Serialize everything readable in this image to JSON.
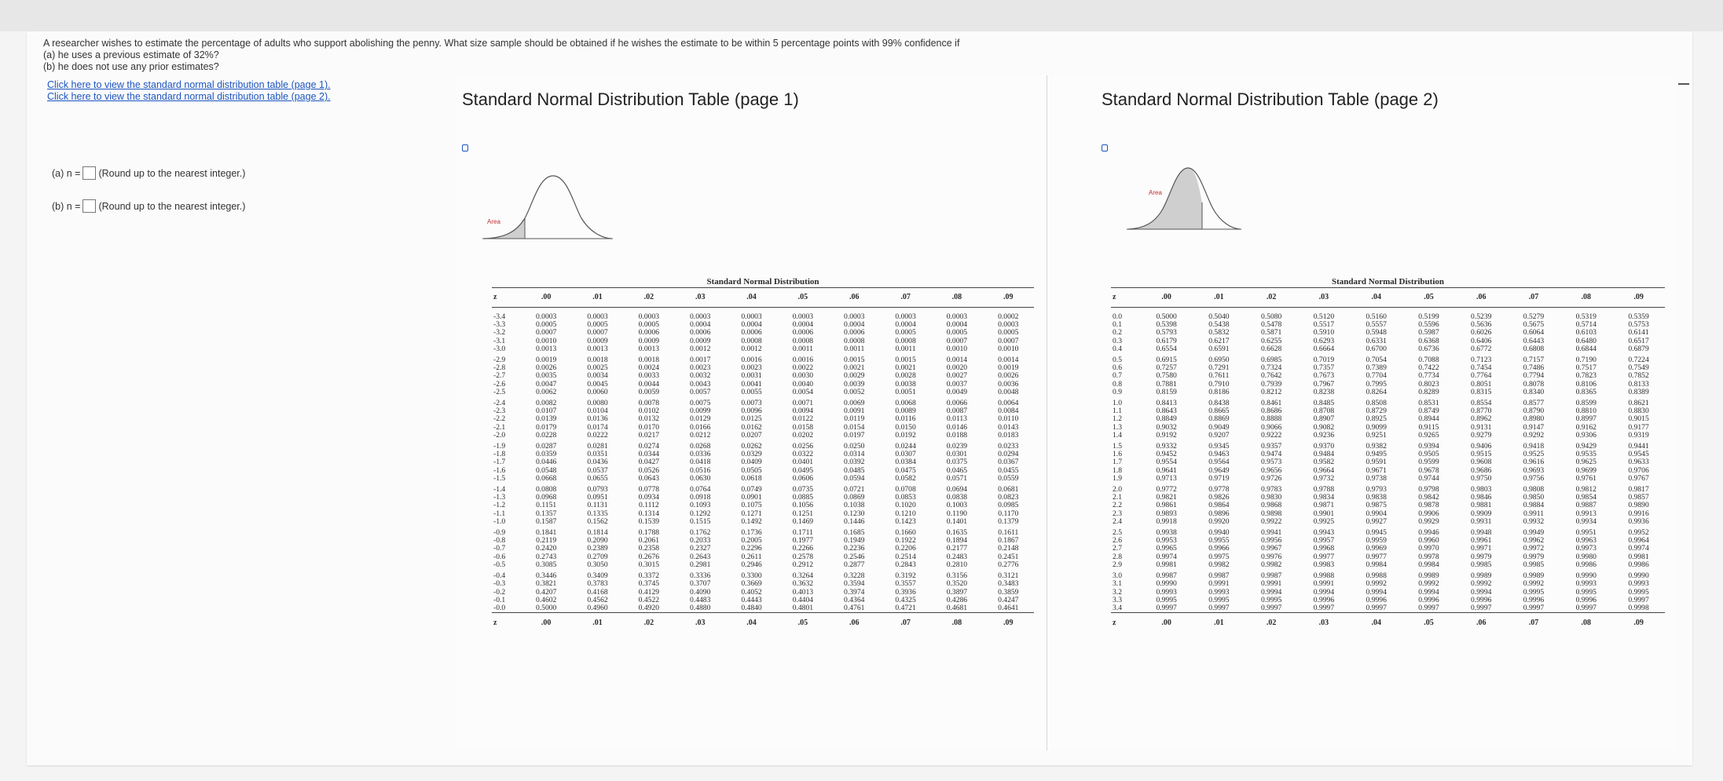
{
  "question": {
    "text": "A researcher wishes to estimate the percentage of adults who support abolishing the penny. What size sample should be obtained if he wishes the estimate to be within 5 percentage points with 99% confidence if",
    "part_a": "(a) he uses a previous estimate of 32%?",
    "part_b": "(b) he does not use any prior estimates?",
    "link_page1": "Click here to view the standard normal distribution table (page 1).",
    "link_page2": "Click here to view the standard normal distribution table (page 2)."
  },
  "answers": {
    "a_label": "(a) n =",
    "a_hint": "(Round up to the nearest integer.)",
    "b_label": "(b) n =",
    "b_hint": "(Round up to the nearest integer.)"
  },
  "table1": {
    "window_title": "Standard Normal Distribution Table (page 1)",
    "area_label": "Area",
    "title": "Standard Normal Distribution",
    "header": [
      "z",
      ".00",
      ".01",
      ".02",
      ".03",
      ".04",
      ".05",
      ".06",
      ".07",
      ".08",
      ".09"
    ],
    "rows": [
      [
        "-3.4",
        "0.0003",
        "0.0003",
        "0.0003",
        "0.0003",
        "0.0003",
        "0.0003",
        "0.0003",
        "0.0003",
        "0.0003",
        "0.0002"
      ],
      [
        "-3.3",
        "0.0005",
        "0.0005",
        "0.0005",
        "0.0004",
        "0.0004",
        "0.0004",
        "0.0004",
        "0.0004",
        "0.0004",
        "0.0003"
      ],
      [
        "-3.2",
        "0.0007",
        "0.0007",
        "0.0006",
        "0.0006",
        "0.0006",
        "0.0006",
        "0.0006",
        "0.0005",
        "0.0005",
        "0.0005"
      ],
      [
        "-3.1",
        "0.0010",
        "0.0009",
        "0.0009",
        "0.0009",
        "0.0008",
        "0.0008",
        "0.0008",
        "0.0008",
        "0.0007",
        "0.0007"
      ],
      [
        "-3.0",
        "0.0013",
        "0.0013",
        "0.0013",
        "0.0012",
        "0.0012",
        "0.0011",
        "0.0011",
        "0.0011",
        "0.0010",
        "0.0010"
      ],
      [
        "-2.9",
        "0.0019",
        "0.0018",
        "0.0018",
        "0.0017",
        "0.0016",
        "0.0016",
        "0.0015",
        "0.0015",
        "0.0014",
        "0.0014"
      ],
      [
        "-2.8",
        "0.0026",
        "0.0025",
        "0.0024",
        "0.0023",
        "0.0023",
        "0.0022",
        "0.0021",
        "0.0021",
        "0.0020",
        "0.0019"
      ],
      [
        "-2.7",
        "0.0035",
        "0.0034",
        "0.0033",
        "0.0032",
        "0.0031",
        "0.0030",
        "0.0029",
        "0.0028",
        "0.0027",
        "0.0026"
      ],
      [
        "-2.6",
        "0.0047",
        "0.0045",
        "0.0044",
        "0.0043",
        "0.0041",
        "0.0040",
        "0.0039",
        "0.0038",
        "0.0037",
        "0.0036"
      ],
      [
        "-2.5",
        "0.0062",
        "0.0060",
        "0.0059",
        "0.0057",
        "0.0055",
        "0.0054",
        "0.0052",
        "0.0051",
        "0.0049",
        "0.0048"
      ],
      [
        "-2.4",
        "0.0082",
        "0.0080",
        "0.0078",
        "0.0075",
        "0.0073",
        "0.0071",
        "0.0069",
        "0.0068",
        "0.0066",
        "0.0064"
      ],
      [
        "-2.3",
        "0.0107",
        "0.0104",
        "0.0102",
        "0.0099",
        "0.0096",
        "0.0094",
        "0.0091",
        "0.0089",
        "0.0087",
        "0.0084"
      ],
      [
        "-2.2",
        "0.0139",
        "0.0136",
        "0.0132",
        "0.0129",
        "0.0125",
        "0.0122",
        "0.0119",
        "0.0116",
        "0.0113",
        "0.0110"
      ],
      [
        "-2.1",
        "0.0179",
        "0.0174",
        "0.0170",
        "0.0166",
        "0.0162",
        "0.0158",
        "0.0154",
        "0.0150",
        "0.0146",
        "0.0143"
      ],
      [
        "-2.0",
        "0.0228",
        "0.0222",
        "0.0217",
        "0.0212",
        "0.0207",
        "0.0202",
        "0.0197",
        "0.0192",
        "0.0188",
        "0.0183"
      ],
      [
        "-1.9",
        "0.0287",
        "0.0281",
        "0.0274",
        "0.0268",
        "0.0262",
        "0.0256",
        "0.0250",
        "0.0244",
        "0.0239",
        "0.0233"
      ],
      [
        "-1.8",
        "0.0359",
        "0.0351",
        "0.0344",
        "0.0336",
        "0.0329",
        "0.0322",
        "0.0314",
        "0.0307",
        "0.0301",
        "0.0294"
      ],
      [
        "-1.7",
        "0.0446",
        "0.0436",
        "0.0427",
        "0.0418",
        "0.0409",
        "0.0401",
        "0.0392",
        "0.0384",
        "0.0375",
        "0.0367"
      ],
      [
        "-1.6",
        "0.0548",
        "0.0537",
        "0.0526",
        "0.0516",
        "0.0505",
        "0.0495",
        "0.0485",
        "0.0475",
        "0.0465",
        "0.0455"
      ],
      [
        "-1.5",
        "0.0668",
        "0.0655",
        "0.0643",
        "0.0630",
        "0.0618",
        "0.0606",
        "0.0594",
        "0.0582",
        "0.0571",
        "0.0559"
      ],
      [
        "-1.4",
        "0.0808",
        "0.0793",
        "0.0778",
        "0.0764",
        "0.0749",
        "0.0735",
        "0.0721",
        "0.0708",
        "0.0694",
        "0.0681"
      ],
      [
        "-1.3",
        "0.0968",
        "0.0951",
        "0.0934",
        "0.0918",
        "0.0901",
        "0.0885",
        "0.0869",
        "0.0853",
        "0.0838",
        "0.0823"
      ],
      [
        "-1.2",
        "0.1151",
        "0.1131",
        "0.1112",
        "0.1093",
        "0.1075",
        "0.1056",
        "0.1038",
        "0.1020",
        "0.1003",
        "0.0985"
      ],
      [
        "-1.1",
        "0.1357",
        "0.1335",
        "0.1314",
        "0.1292",
        "0.1271",
        "0.1251",
        "0.1230",
        "0.1210",
        "0.1190",
        "0.1170"
      ],
      [
        "-1.0",
        "0.1587",
        "0.1562",
        "0.1539",
        "0.1515",
        "0.1492",
        "0.1469",
        "0.1446",
        "0.1423",
        "0.1401",
        "0.1379"
      ],
      [
        "-0.9",
        "0.1841",
        "0.1814",
        "0.1788",
        "0.1762",
        "0.1736",
        "0.1711",
        "0.1685",
        "0.1660",
        "0.1635",
        "0.1611"
      ],
      [
        "-0.8",
        "0.2119",
        "0.2090",
        "0.2061",
        "0.2033",
        "0.2005",
        "0.1977",
        "0.1949",
        "0.1922",
        "0.1894",
        "0.1867"
      ],
      [
        "-0.7",
        "0.2420",
        "0.2389",
        "0.2358",
        "0.2327",
        "0.2296",
        "0.2266",
        "0.2236",
        "0.2206",
        "0.2177",
        "0.2148"
      ],
      [
        "-0.6",
        "0.2743",
        "0.2709",
        "0.2676",
        "0.2643",
        "0.2611",
        "0.2578",
        "0.2546",
        "0.2514",
        "0.2483",
        "0.2451"
      ],
      [
        "-0.5",
        "0.3085",
        "0.3050",
        "0.3015",
        "0.2981",
        "0.2946",
        "0.2912",
        "0.2877",
        "0.2843",
        "0.2810",
        "0.2776"
      ],
      [
        "-0.4",
        "0.3446",
        "0.3409",
        "0.3372",
        "0.3336",
        "0.3300",
        "0.3264",
        "0.3228",
        "0.3192",
        "0.3156",
        "0.3121"
      ],
      [
        "-0.3",
        "0.3821",
        "0.3783",
        "0.3745",
        "0.3707",
        "0.3669",
        "0.3632",
        "0.3594",
        "0.3557",
        "0.3520",
        "0.3483"
      ],
      [
        "-0.2",
        "0.4207",
        "0.4168",
        "0.4129",
        "0.4090",
        "0.4052",
        "0.4013",
        "0.3974",
        "0.3936",
        "0.3897",
        "0.3859"
      ],
      [
        "-0.1",
        "0.4602",
        "0.4562",
        "0.4522",
        "0.4483",
        "0.4443",
        "0.4404",
        "0.4364",
        "0.4325",
        "0.4286",
        "0.4247"
      ],
      [
        "-0.0",
        "0.5000",
        "0.4960",
        "0.4920",
        "0.4880",
        "0.4840",
        "0.4801",
        "0.4761",
        "0.4721",
        "0.4681",
        "0.4641"
      ]
    ]
  },
  "table2": {
    "window_title": "Standard Normal Distribution Table (page 2)",
    "area_label": "Area",
    "title": "Standard Normal Distribution",
    "header": [
      "z",
      ".00",
      ".01",
      ".02",
      ".03",
      ".04",
      ".05",
      ".06",
      ".07",
      ".08",
      ".09"
    ],
    "rows": [
      [
        "0.0",
        "0.5000",
        "0.5040",
        "0.5080",
        "0.5120",
        "0.5160",
        "0.5199",
        "0.5239",
        "0.5279",
        "0.5319",
        "0.5359"
      ],
      [
        "0.1",
        "0.5398",
        "0.5438",
        "0.5478",
        "0.5517",
        "0.5557",
        "0.5596",
        "0.5636",
        "0.5675",
        "0.5714",
        "0.5753"
      ],
      [
        "0.2",
        "0.5793",
        "0.5832",
        "0.5871",
        "0.5910",
        "0.5948",
        "0.5987",
        "0.6026",
        "0.6064",
        "0.6103",
        "0.6141"
      ],
      [
        "0.3",
        "0.6179",
        "0.6217",
        "0.6255",
        "0.6293",
        "0.6331",
        "0.6368",
        "0.6406",
        "0.6443",
        "0.6480",
        "0.6517"
      ],
      [
        "0.4",
        "0.6554",
        "0.6591",
        "0.6628",
        "0.6664",
        "0.6700",
        "0.6736",
        "0.6772",
        "0.6808",
        "0.6844",
        "0.6879"
      ],
      [
        "0.5",
        "0.6915",
        "0.6950",
        "0.6985",
        "0.7019",
        "0.7054",
        "0.7088",
        "0.7123",
        "0.7157",
        "0.7190",
        "0.7224"
      ],
      [
        "0.6",
        "0.7257",
        "0.7291",
        "0.7324",
        "0.7357",
        "0.7389",
        "0.7422",
        "0.7454",
        "0.7486",
        "0.7517",
        "0.7549"
      ],
      [
        "0.7",
        "0.7580",
        "0.7611",
        "0.7642",
        "0.7673",
        "0.7704",
        "0.7734",
        "0.7764",
        "0.7794",
        "0.7823",
        "0.7852"
      ],
      [
        "0.8",
        "0.7881",
        "0.7910",
        "0.7939",
        "0.7967",
        "0.7995",
        "0.8023",
        "0.8051",
        "0.8078",
        "0.8106",
        "0.8133"
      ],
      [
        "0.9",
        "0.8159",
        "0.8186",
        "0.8212",
        "0.8238",
        "0.8264",
        "0.8289",
        "0.8315",
        "0.8340",
        "0.8365",
        "0.8389"
      ],
      [
        "1.0",
        "0.8413",
        "0.8438",
        "0.8461",
        "0.8485",
        "0.8508",
        "0.8531",
        "0.8554",
        "0.8577",
        "0.8599",
        "0.8621"
      ],
      [
        "1.1",
        "0.8643",
        "0.8665",
        "0.8686",
        "0.8708",
        "0.8729",
        "0.8749",
        "0.8770",
        "0.8790",
        "0.8810",
        "0.8830"
      ],
      [
        "1.2",
        "0.8849",
        "0.8869",
        "0.8888",
        "0.8907",
        "0.8925",
        "0.8944",
        "0.8962",
        "0.8980",
        "0.8997",
        "0.9015"
      ],
      [
        "1.3",
        "0.9032",
        "0.9049",
        "0.9066",
        "0.9082",
        "0.9099",
        "0.9115",
        "0.9131",
        "0.9147",
        "0.9162",
        "0.9177"
      ],
      [
        "1.4",
        "0.9192",
        "0.9207",
        "0.9222",
        "0.9236",
        "0.9251",
        "0.9265",
        "0.9279",
        "0.9292",
        "0.9306",
        "0.9319"
      ],
      [
        "1.5",
        "0.9332",
        "0.9345",
        "0.9357",
        "0.9370",
        "0.9382",
        "0.9394",
        "0.9406",
        "0.9418",
        "0.9429",
        "0.9441"
      ],
      [
        "1.6",
        "0.9452",
        "0.9463",
        "0.9474",
        "0.9484",
        "0.9495",
        "0.9505",
        "0.9515",
        "0.9525",
        "0.9535",
        "0.9545"
      ],
      [
        "1.7",
        "0.9554",
        "0.9564",
        "0.9573",
        "0.9582",
        "0.9591",
        "0.9599",
        "0.9608",
        "0.9616",
        "0.9625",
        "0.9633"
      ],
      [
        "1.8",
        "0.9641",
        "0.9649",
        "0.9656",
        "0.9664",
        "0.9671",
        "0.9678",
        "0.9686",
        "0.9693",
        "0.9699",
        "0.9706"
      ],
      [
        "1.9",
        "0.9713",
        "0.9719",
        "0.9726",
        "0.9732",
        "0.9738",
        "0.9744",
        "0.9750",
        "0.9756",
        "0.9761",
        "0.9767"
      ],
      [
        "2.0",
        "0.9772",
        "0.9778",
        "0.9783",
        "0.9788",
        "0.9793",
        "0.9798",
        "0.9803",
        "0.9808",
        "0.9812",
        "0.9817"
      ],
      [
        "2.1",
        "0.9821",
        "0.9826",
        "0.9830",
        "0.9834",
        "0.9838",
        "0.9842",
        "0.9846",
        "0.9850",
        "0.9854",
        "0.9857"
      ],
      [
        "2.2",
        "0.9861",
        "0.9864",
        "0.9868",
        "0.9871",
        "0.9875",
        "0.9878",
        "0.9881",
        "0.9884",
        "0.9887",
        "0.9890"
      ],
      [
        "2.3",
        "0.9893",
        "0.9896",
        "0.9898",
        "0.9901",
        "0.9904",
        "0.9906",
        "0.9909",
        "0.9911",
        "0.9913",
        "0.9916"
      ],
      [
        "2.4",
        "0.9918",
        "0.9920",
        "0.9922",
        "0.9925",
        "0.9927",
        "0.9929",
        "0.9931",
        "0.9932",
        "0.9934",
        "0.9936"
      ],
      [
        "2.5",
        "0.9938",
        "0.9940",
        "0.9941",
        "0.9943",
        "0.9945",
        "0.9946",
        "0.9948",
        "0.9949",
        "0.9951",
        "0.9952"
      ],
      [
        "2.6",
        "0.9953",
        "0.9955",
        "0.9956",
        "0.9957",
        "0.9959",
        "0.9960",
        "0.9961",
        "0.9962",
        "0.9963",
        "0.9964"
      ],
      [
        "2.7",
        "0.9965",
        "0.9966",
        "0.9967",
        "0.9968",
        "0.9969",
        "0.9970",
        "0.9971",
        "0.9972",
        "0.9973",
        "0.9974"
      ],
      [
        "2.8",
        "0.9974",
        "0.9975",
        "0.9976",
        "0.9977",
        "0.9977",
        "0.9978",
        "0.9979",
        "0.9979",
        "0.9980",
        "0.9981"
      ],
      [
        "2.9",
        "0.9981",
        "0.9982",
        "0.9982",
        "0.9983",
        "0.9984",
        "0.9984",
        "0.9985",
        "0.9985",
        "0.9986",
        "0.9986"
      ],
      [
        "3.0",
        "0.9987",
        "0.9987",
        "0.9987",
        "0.9988",
        "0.9988",
        "0.9989",
        "0.9989",
        "0.9989",
        "0.9990",
        "0.9990"
      ],
      [
        "3.1",
        "0.9990",
        "0.9991",
        "0.9991",
        "0.9991",
        "0.9992",
        "0.9992",
        "0.9992",
        "0.9992",
        "0.9993",
        "0.9993"
      ],
      [
        "3.2",
        "0.9993",
        "0.9993",
        "0.9994",
        "0.9994",
        "0.9994",
        "0.9994",
        "0.9994",
        "0.9995",
        "0.9995",
        "0.9995"
      ],
      [
        "3.3",
        "0.9995",
        "0.9995",
        "0.9995",
        "0.9996",
        "0.9996",
        "0.9996",
        "0.9996",
        "0.9996",
        "0.9996",
        "0.9997"
      ],
      [
        "3.4",
        "0.9997",
        "0.9997",
        "0.9997",
        "0.9997",
        "0.9997",
        "0.9997",
        "0.9997",
        "0.9997",
        "0.9997",
        "0.9998"
      ]
    ]
  },
  "colors": {
    "link": "#1d55c0",
    "text": "#222222",
    "shade": "#cfcfcf"
  },
  "icons": {
    "window_marker": "page-marker-icon",
    "minimize": "minimize-icon"
  }
}
